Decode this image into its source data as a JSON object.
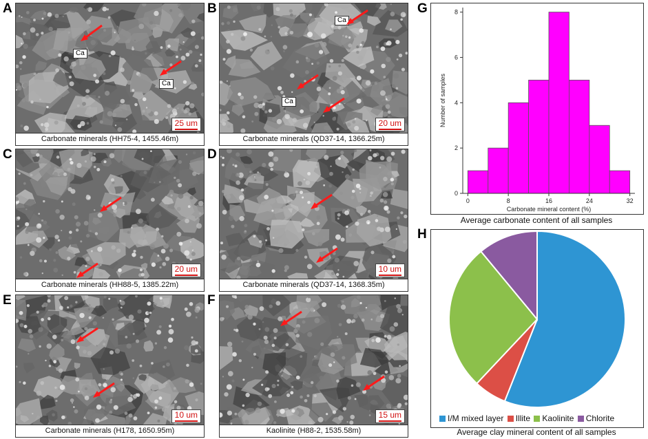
{
  "panels": [
    {
      "letter": "A",
      "caption": "Carbonate minerals (HH75-4, 1455.46m)",
      "scale": "25 um",
      "tags": [
        "Ca",
        "Ca"
      ]
    },
    {
      "letter": "B",
      "caption": "Carbonate minerals (QD37-14, 1366.25m)",
      "scale": "20 um",
      "tags": [
        "Ca",
        "Ca"
      ]
    },
    {
      "letter": "C",
      "caption": "Carbonate minerals (HH88-5, 1385.22m)",
      "scale": "20 um",
      "tags": []
    },
    {
      "letter": "D",
      "caption": "Carbonate minerals (QD37-14, 1368.35m)",
      "scale": "10 um",
      "tags": []
    },
    {
      "letter": "E",
      "caption": "Carbonate minerals (H178, 1650.95m)",
      "scale": "10 um",
      "tags": []
    },
    {
      "letter": "F",
      "caption": "Kaolinite (H88-2, 1535.58m)",
      "scale": "15 um",
      "tags": []
    }
  ],
  "histogram": {
    "letter": "G",
    "caption": "Average carbonate content of all samples",
    "chart_data": {
      "type": "bar",
      "xlabel": "Carbonate mineral content (%)",
      "ylabel": "Number of samples",
      "bin_edges": [
        0,
        4,
        8,
        12,
        16,
        20,
        24,
        28,
        32
      ],
      "values": [
        1,
        2,
        4,
        5,
        8,
        5,
        3,
        1
      ],
      "xticks": [
        "0",
        "8",
        "16",
        "24",
        "32"
      ],
      "yticks": [
        "0",
        "2",
        "4",
        "6",
        "8"
      ],
      "xlim": [
        -1,
        33
      ],
      "ylim": [
        0,
        8.2
      ],
      "color": "#ff00ff"
    }
  },
  "pie": {
    "letter": "H",
    "caption": "Average clay mineral content of all samples",
    "chart_data": {
      "type": "pie",
      "labels": [
        "I/M mixed  layer",
        "Illite",
        "Kaolinite",
        "Chlorite"
      ],
      "values": [
        56,
        6,
        27,
        11
      ],
      "colors": [
        "#2e95d3",
        "#dc4f46",
        "#8cc04b",
        "#8a5aa0"
      ]
    }
  }
}
